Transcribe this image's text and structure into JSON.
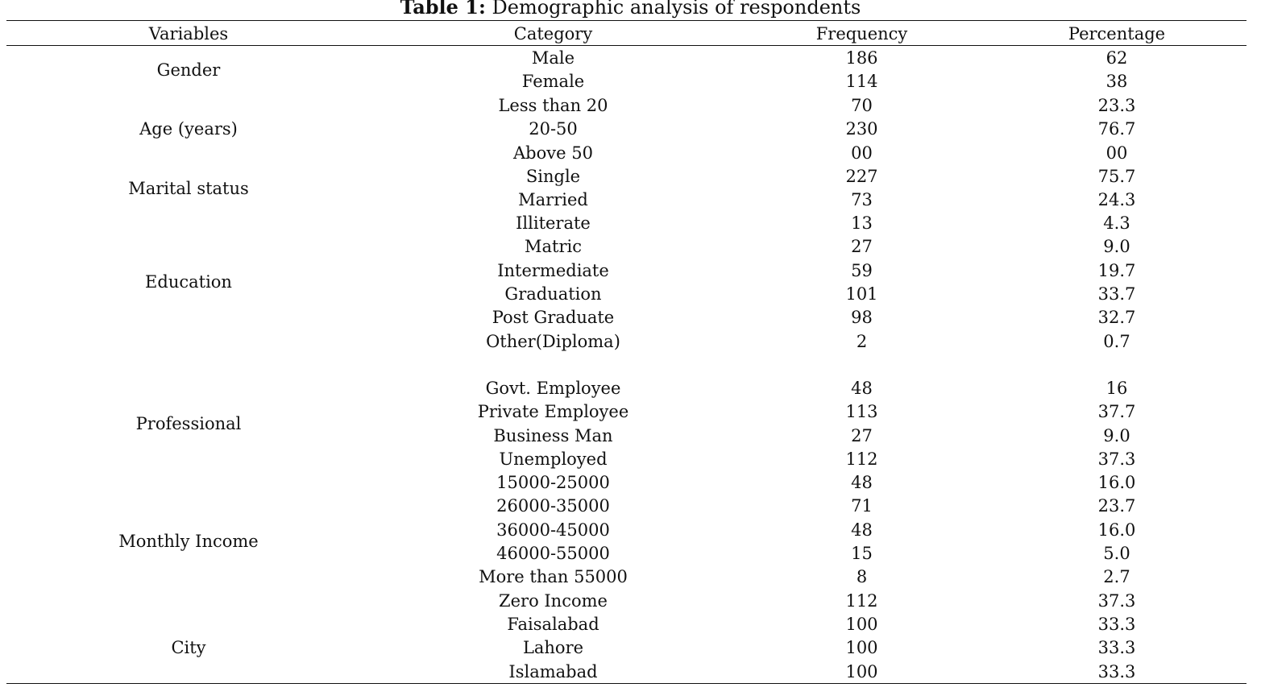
{
  "caption": {
    "label": "Table 1:",
    "text": "Demographic analysis of respondents"
  },
  "header": {
    "variables": "Variables",
    "category": "Category",
    "frequency": "Frequency",
    "percentage": "Percentage"
  },
  "groups": [
    {
      "variable": "Gender",
      "rows": [
        {
          "category": "Male",
          "frequency": "186",
          "percentage": "62"
        },
        {
          "category": "Female",
          "frequency": "114",
          "percentage": "38"
        }
      ]
    },
    {
      "variable": "Age (years)",
      "rows": [
        {
          "category": "Less than 20",
          "frequency": "70",
          "percentage": "23.3"
        },
        {
          "category": "20-50",
          "frequency": "230",
          "percentage": "76.7"
        },
        {
          "category": "Above 50",
          "frequency": "00",
          "percentage": "00"
        }
      ]
    },
    {
      "variable": "Marital status",
      "rows": [
        {
          "category": "Single",
          "frequency": "227",
          "percentage": "75.7"
        },
        {
          "category": "Married",
          "frequency": "73",
          "percentage": "24.3"
        }
      ]
    },
    {
      "variable": "Education",
      "rows": [
        {
          "category": "Illiterate",
          "frequency": "13",
          "percentage": "4.3"
        },
        {
          "category": "Matric",
          "frequency": "27",
          "percentage": "9.0"
        },
        {
          "category": "Intermediate",
          "frequency": "59",
          "percentage": "19.7"
        },
        {
          "category": "Graduation",
          "frequency": "101",
          "percentage": "33.7"
        },
        {
          "category": "Post Graduate",
          "frequency": "98",
          "percentage": "32.7"
        },
        {
          "category": "Other(Diploma)",
          "frequency": "2",
          "percentage": "0.7"
        }
      ]
    },
    {
      "variable": "Professional",
      "rows": [
        {
          "category": "Govt. Employee",
          "frequency": "48",
          "percentage": "16"
        },
        {
          "category": "Private Employee",
          "frequency": "113",
          "percentage": "37.7"
        },
        {
          "category": "Business Man",
          "frequency": "27",
          "percentage": "9.0"
        },
        {
          "category": "Unemployed",
          "frequency": "112",
          "percentage": "37.3"
        }
      ]
    },
    {
      "variable": "Monthly Income",
      "rows": [
        {
          "category": "15000-25000",
          "frequency": "48",
          "percentage": "16.0"
        },
        {
          "category": "26000-35000",
          "frequency": "71",
          "percentage": "23.7"
        },
        {
          "category": "36000-45000",
          "frequency": "48",
          "percentage": "16.0"
        },
        {
          "category": "46000-55000",
          "frequency": "15",
          "percentage": "5.0"
        },
        {
          "category": "More than 55000",
          "frequency": "8",
          "percentage": "2.7"
        },
        {
          "category": "Zero Income",
          "frequency": "112",
          "percentage": "37.3"
        }
      ]
    },
    {
      "variable": "City",
      "rows": [
        {
          "category": "Faisalabad",
          "frequency": "100",
          "percentage": "33.3"
        },
        {
          "category": "Lahore",
          "frequency": "100",
          "percentage": "33.3"
        },
        {
          "category": "Islamabad",
          "frequency": "100",
          "percentage": "33.3"
        }
      ]
    }
  ]
}
